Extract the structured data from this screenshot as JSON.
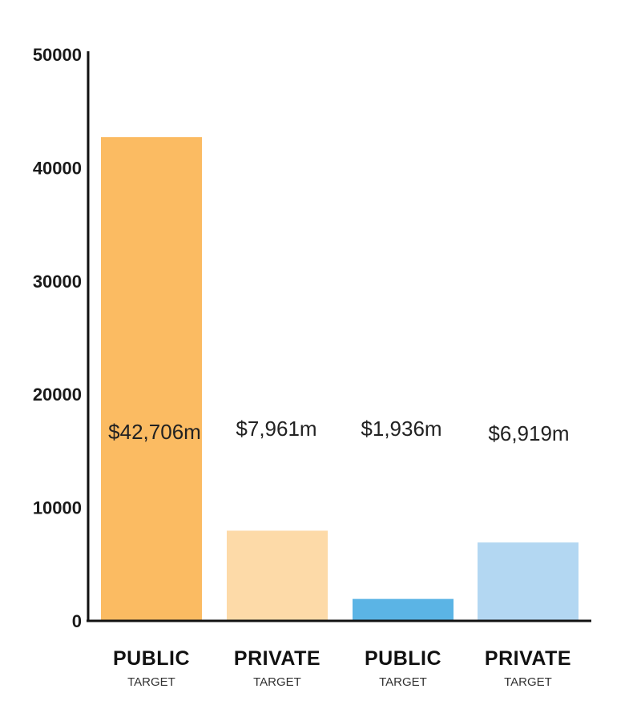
{
  "chart_data": {
    "type": "bar",
    "title": "",
    "xlabel": "",
    "ylabel": "",
    "ylim": [
      0,
      50000
    ],
    "yticks": [
      0,
      10000,
      20000,
      30000,
      40000,
      50000
    ],
    "grid": false,
    "categories": [
      {
        "main": "PUBLIC",
        "sub": "TARGET"
      },
      {
        "main": "PRIVATE",
        "sub": "TARGET"
      },
      {
        "main": "PUBLIC",
        "sub": "TARGET"
      },
      {
        "main": "PRIVATE",
        "sub": "TARGET"
      }
    ],
    "values": [
      42706,
      7961,
      1936,
      6919
    ],
    "value_labels": [
      "$42,706m",
      "$7,961m",
      "$1,936m",
      "$6,919m"
    ],
    "colors": [
      "#fbbb62",
      "#fddaa8",
      "#5bb4e5",
      "#b3d7f2"
    ],
    "axis_color": "#111111"
  }
}
